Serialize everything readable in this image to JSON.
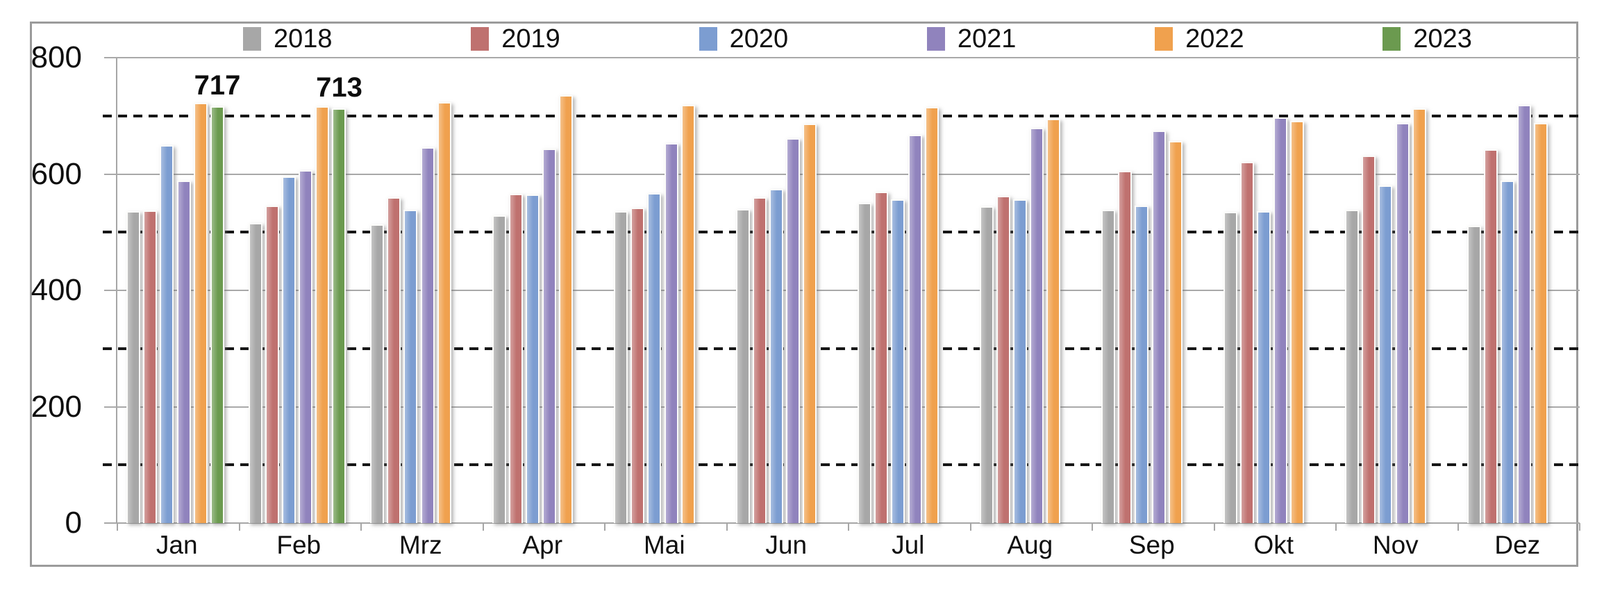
{
  "chart_data": {
    "type": "bar",
    "title": "",
    "xlabel": "",
    "ylabel": "",
    "ylim": [
      0,
      800
    ],
    "y_ticks": [
      0,
      200,
      400,
      600,
      800
    ],
    "gridlines": {
      "solid": [
        200,
        400,
        600,
        800
      ],
      "dashed": [
        100,
        300,
        500,
        700
      ]
    },
    "legend_position": "top",
    "categories": [
      "Jan",
      "Feb",
      "Mrz",
      "Apr",
      "Mai",
      "Jun",
      "Jul",
      "Aug",
      "Sep",
      "Okt",
      "Nov",
      "Dez"
    ],
    "series": [
      {
        "name": "2018",
        "color": "#A7A7A7",
        "values": [
          536,
          516,
          514,
          529,
          536,
          540,
          551,
          544,
          538,
          535,
          539,
          511
        ]
      },
      {
        "name": "2019",
        "color": "#BF716F",
        "values": [
          537,
          546,
          560,
          566,
          542,
          560,
          570,
          562,
          605,
          621,
          632,
          642
        ]
      },
      {
        "name": "2020",
        "color": "#7C9DD1",
        "values": [
          650,
          596,
          539,
          565,
          567,
          574,
          556,
          557,
          546,
          536,
          580,
          589
        ]
      },
      {
        "name": "2021",
        "color": "#9083BD",
        "values": [
          589,
          606,
          646,
          644,
          653,
          662,
          667,
          680,
          675,
          697,
          688,
          719
        ]
      },
      {
        "name": "2022",
        "color": "#F0A14E",
        "values": [
          722,
          716,
          724,
          735,
          719,
          687,
          715,
          695,
          657,
          691,
          713,
          688
        ]
      },
      {
        "name": "2023",
        "color": "#6B9A4F",
        "values": [
          717,
          713,
          null,
          null,
          null,
          null,
          null,
          null,
          null,
          null,
          null,
          null
        ]
      }
    ],
    "data_labels": [
      {
        "series": "2023",
        "category": "Jan",
        "text": "717"
      },
      {
        "series": "2023",
        "category": "Feb",
        "text": "713"
      }
    ],
    "colors": {
      "frame": "#9b9b9b",
      "grid_solid": "#a9a9a9",
      "grid_dashed": "#161616",
      "text": "#0f0f0f"
    }
  }
}
